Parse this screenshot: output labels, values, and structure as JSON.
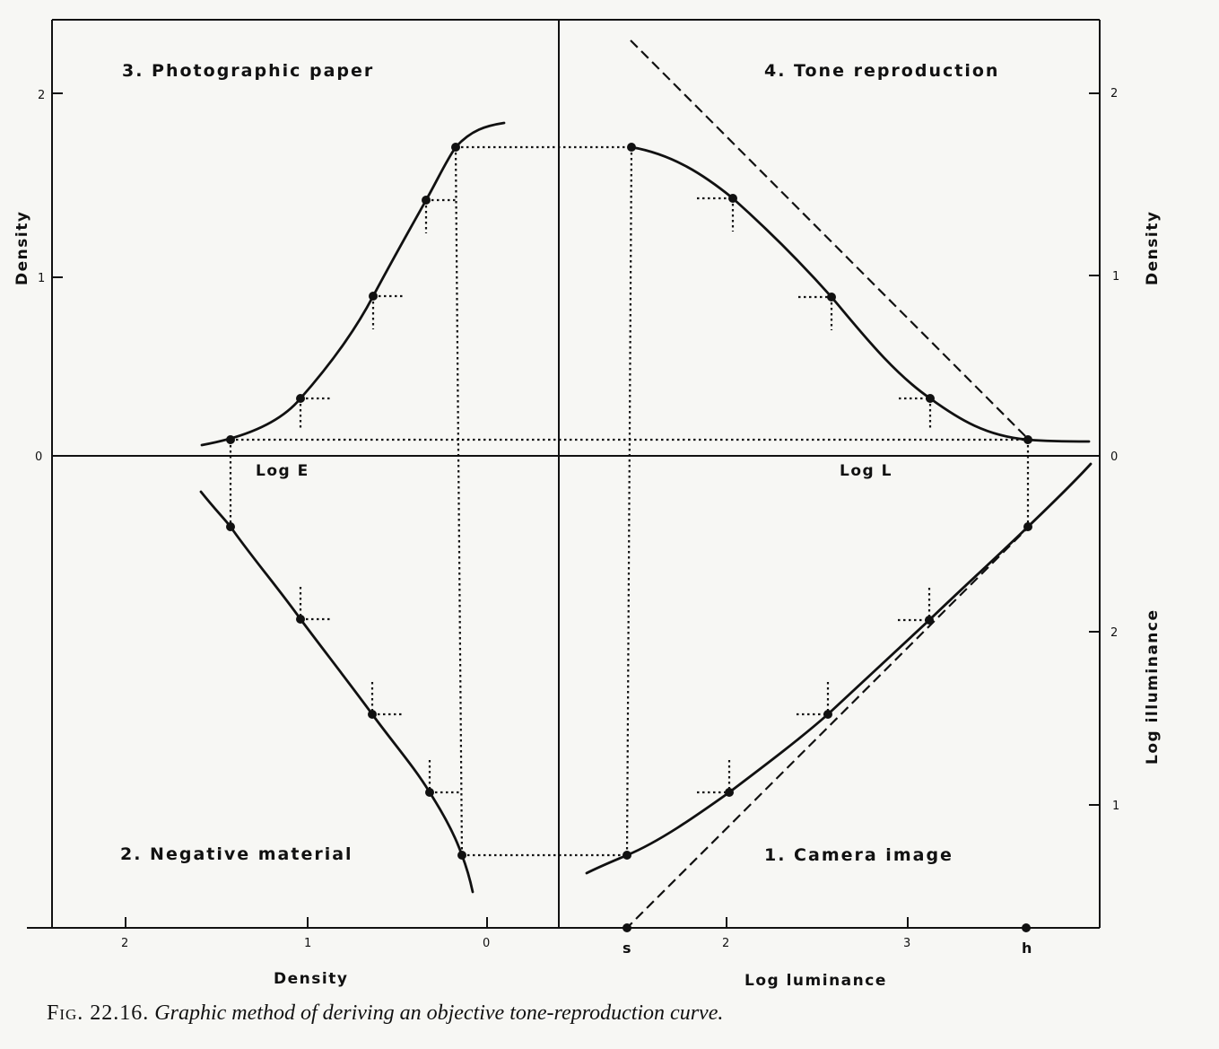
{
  "quadrants": {
    "q1": "1.  Camera  image",
    "q2": "2.  Negative  material",
    "q3": "3.  Photographic  paper",
    "q4": "4.  Tone  reproduction"
  },
  "labels": {
    "log_e": "Log  E",
    "log_l": "Log  L",
    "density_left": "Density",
    "density_right": "Density",
    "density_bottom": "Density",
    "log_luminance": "Log  luminance",
    "log_illuminance": "Log  illuminance"
  },
  "ticks": {
    "left_density": [
      "2",
      "1",
      "0"
    ],
    "right_density": [
      "2",
      "1",
      "0"
    ],
    "right_illuminance": [
      "2",
      "1"
    ],
    "bottom_density": [
      "2",
      "1",
      "0"
    ],
    "bottom_luminance": [
      "s",
      "2",
      "3",
      "h"
    ]
  },
  "caption": {
    "fig_number": "Fig. 22.16.",
    "text": "Graphic method of deriving an objective tone-reproduction curve."
  }
}
